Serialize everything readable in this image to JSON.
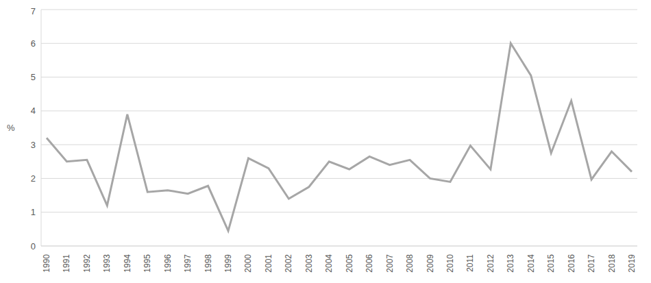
{
  "chart_data": {
    "type": "line",
    "y_label": "%",
    "categories": [
      "1990",
      "1991",
      "1992",
      "1993",
      "1994",
      "1995",
      "1996",
      "1997",
      "1998",
      "1999",
      "2000",
      "2001",
      "2002",
      "2003",
      "2004",
      "2005",
      "2006",
      "2007",
      "2008",
      "2009",
      "2010",
      "2011",
      "2012",
      "2013",
      "2014",
      "2015",
      "2016",
      "2017",
      "2018",
      "2019"
    ],
    "values": [
      3.2,
      2.5,
      2.55,
      1.2,
      3.9,
      1.6,
      1.65,
      1.55,
      1.78,
      0.45,
      2.6,
      2.3,
      1.4,
      1.75,
      2.5,
      2.27,
      2.65,
      2.4,
      2.55,
      2.0,
      1.9,
      2.97,
      2.27,
      6.0,
      5.05,
      2.75,
      4.3,
      1.97,
      2.8,
      2.2
    ],
    "color": "#a6a6a6",
    "ylim": [
      0,
      7
    ],
    "yticks": [
      0,
      1,
      2,
      3,
      4,
      5,
      6,
      7
    ],
    "grid": true
  }
}
